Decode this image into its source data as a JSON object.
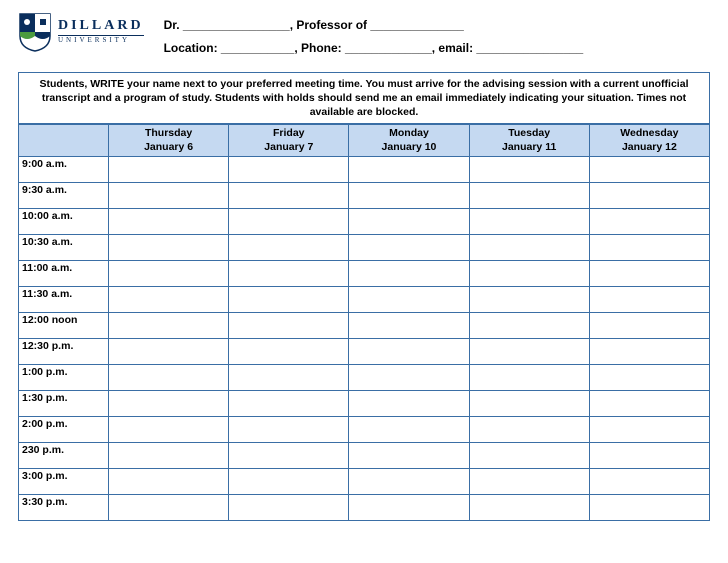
{
  "logo": {
    "university_name": "DILLARD",
    "university_sub": "UNIVERSITY",
    "shield_colors": {
      "outline": "#0a2e5c",
      "field1": "#0a2e5c",
      "field2": "#4b9b3f",
      "field3": "#ffffff"
    }
  },
  "header_lines": {
    "line1": "Dr. ________________, Professor of  ______________",
    "line2": "Location: ___________, Phone: _____________, email: ________________"
  },
  "instructions_text": "Students, WRITE your name next to your preferred meeting time. You must arrive for the advising session with a current unofficial transcript and a program of study. Students with holds should send me an email immediately indicating your situation.  Times not available are blocked.",
  "table": {
    "header_bg": "#c5d9f1",
    "border_color": "#3a6ea5",
    "columns": [
      {
        "day": "",
        "date": ""
      },
      {
        "day": "Thursday",
        "date": "January 6"
      },
      {
        "day": "Friday",
        "date": "January 7"
      },
      {
        "day": "Monday",
        "date": "January 10"
      },
      {
        "day": "Tuesday",
        "date": "January 11"
      },
      {
        "day": "Wednesday",
        "date": "January 12"
      }
    ],
    "times": [
      "9:00 a.m.",
      "9:30 a.m.",
      "10:00 a.m.",
      "10:30 a.m.",
      "11:00 a.m.",
      "11:30 a.m.",
      "12:00 noon",
      "12:30 p.m.",
      "1:00 p.m.",
      "1:30 p.m.",
      "2:00 p.m.",
      "230 p.m.",
      "3:00 p.m.",
      "3:30 p.m."
    ]
  }
}
